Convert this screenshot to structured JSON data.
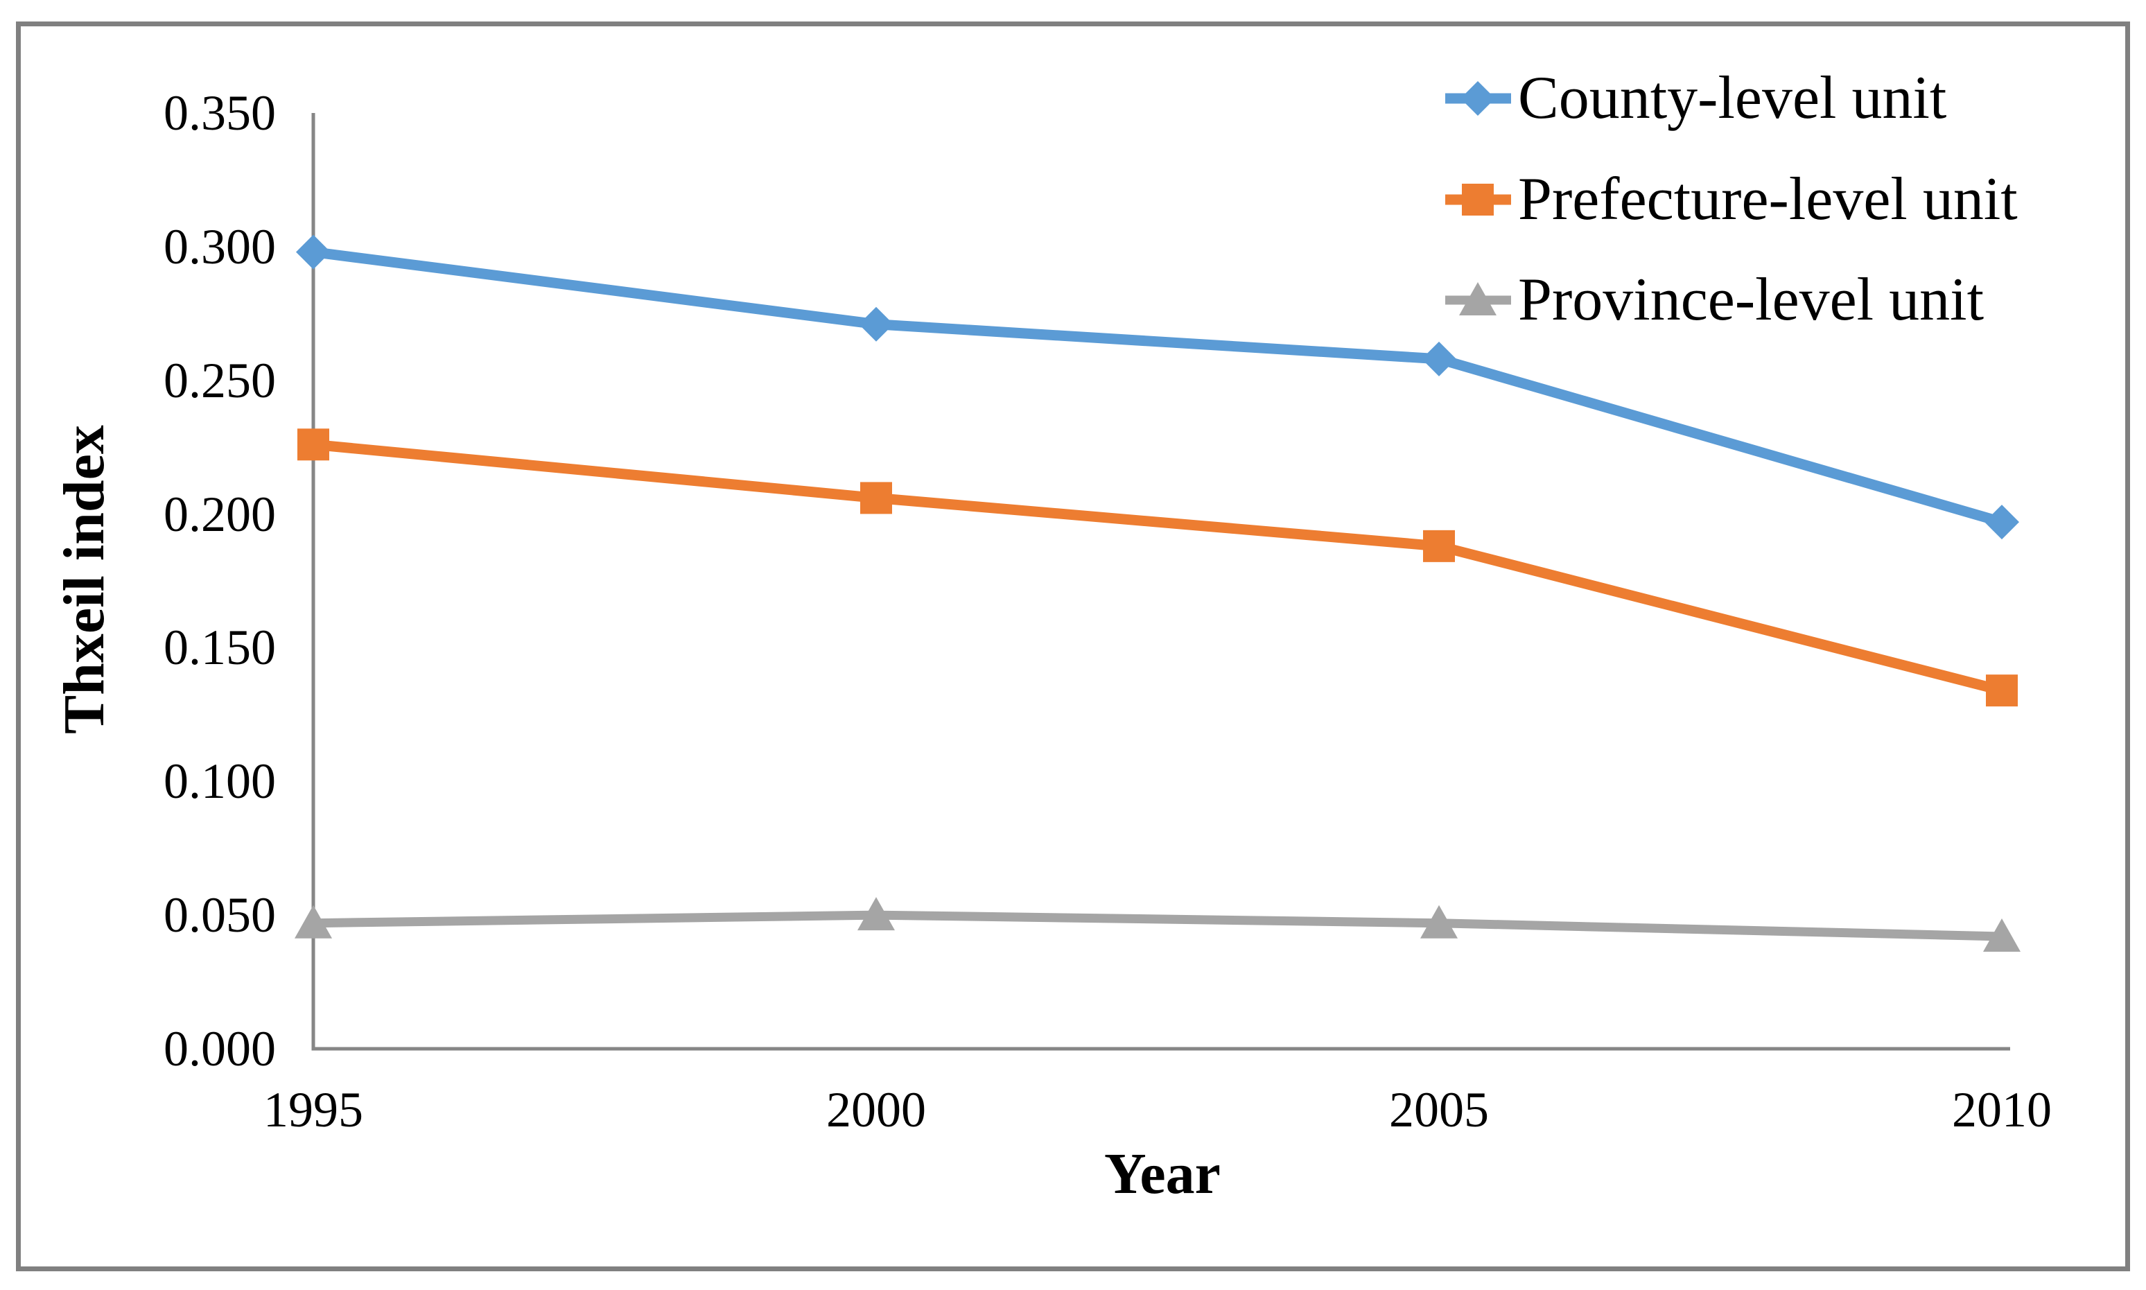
{
  "figure": {
    "background_color": "#FFFFFF",
    "border_color": "#808080",
    "axis_color": "#868686",
    "text_color": "#000000"
  },
  "chart_data": {
    "type": "line",
    "title": "",
    "xlabel": "Year",
    "ylabel": "Thxeil index",
    "x": [
      1995,
      2000,
      2005,
      2010
    ],
    "x_tick_labels": [
      "1995",
      "2000",
      "2005",
      "2010"
    ],
    "y_tick_labels": [
      "0.000",
      "0.050",
      "0.100",
      "0.150",
      "0.200",
      "0.250",
      "0.300",
      "0.350"
    ],
    "ylim": [
      0.0,
      0.35
    ],
    "y_tick_step": 0.05,
    "grid": false,
    "legend_position": "top-right",
    "series": [
      {
        "name": "County-level unit",
        "color": "#5B9BD5",
        "marker": "diamond",
        "values": [
          0.298,
          0.271,
          0.258,
          0.197
        ]
      },
      {
        "name": "Prefecture-level unit",
        "color": "#ED7D31",
        "marker": "square",
        "values": [
          0.226,
          0.206,
          0.188,
          0.134
        ]
      },
      {
        "name": "Province-level unit",
        "color": "#A5A5A5",
        "marker": "triangle",
        "values": [
          0.047,
          0.05,
          0.047,
          0.042
        ]
      }
    ]
  }
}
